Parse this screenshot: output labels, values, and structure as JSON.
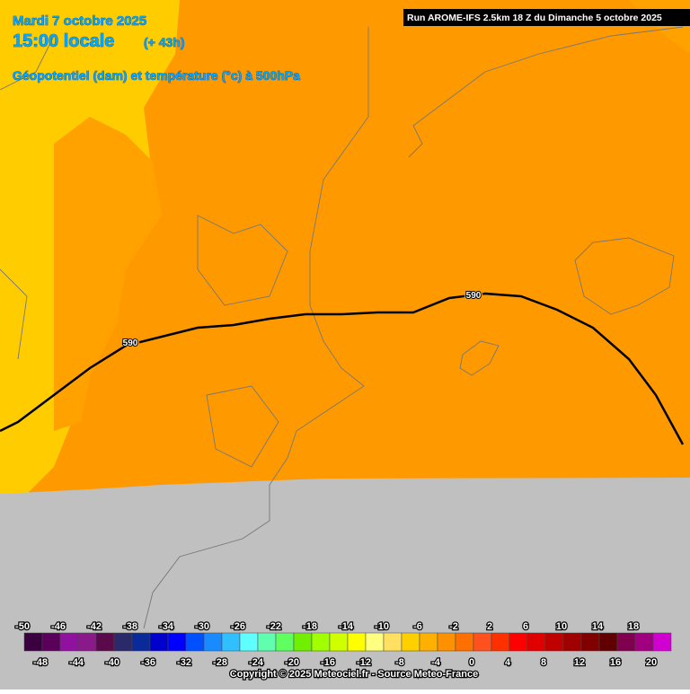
{
  "header": {
    "date": "Mardi 7 octobre 2025",
    "time": "15:00 locale",
    "lead": "(+ 43h)",
    "field": "Géopotentiel (dam) et température (°c) à 500hPa",
    "run": "Run AROME-IFS 2.5km 18 Z du Dimanche 5 octobre 2025"
  },
  "contour_labels": [
    590,
    590
  ],
  "legend": {
    "values": [
      -50,
      -48,
      -46,
      -44,
      -42,
      -40,
      -38,
      -36,
      -34,
      -32,
      -30,
      -28,
      -26,
      -24,
      -22,
      -20,
      -18,
      -16,
      -14,
      -12,
      -10,
      -8,
      -6,
      -4,
      -2,
      0,
      2,
      4,
      6,
      8,
      10,
      12,
      14,
      16,
      18,
      20
    ],
    "colors": [
      "#3a0040",
      "#5a005a",
      "#9010a0",
      "#8a1a8a",
      "#5a0a4a",
      "#2a2a6a",
      "#0a2a9a",
      "#0000cc",
      "#0000ff",
      "#0050ff",
      "#1a8aff",
      "#30c0ff",
      "#60ffff",
      "#60ffb0",
      "#60ff60",
      "#70f000",
      "#a0ff00",
      "#d0ff00",
      "#ffff00",
      "#ffff80",
      "#ffe060",
      "#ffd000",
      "#ffb000",
      "#ff9000",
      "#ff7000",
      "#ff5020",
      "#ff3000",
      "#ff0000",
      "#e00000",
      "#c00000",
      "#a00000",
      "#800000",
      "#600000",
      "#800050",
      "#a00080",
      "#d000d0"
    ]
  },
  "copyright": "Copyright © 2025 Meteociel.fr - Source Meteo-France"
}
